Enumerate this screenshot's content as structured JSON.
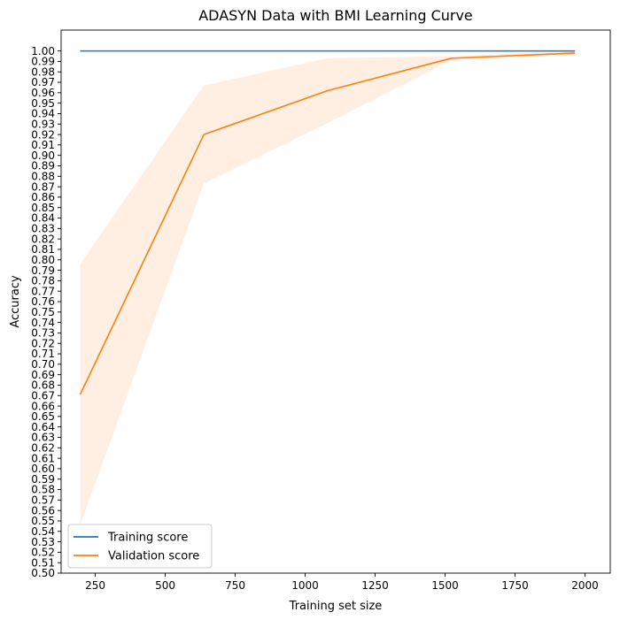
{
  "chart_data": {
    "type": "line",
    "title": "ADASYN Data with BMI Learning Curve",
    "xlabel": "Training set size",
    "ylabel": "Accuracy",
    "xlim": [
      128,
      2090
    ],
    "ylim": [
      0.5,
      1.02
    ],
    "xticks": [
      250,
      500,
      750,
      1000,
      1250,
      1500,
      1750,
      2000
    ],
    "xtick_labels": [
      "250",
      "500",
      "750",
      "1000",
      "1250",
      "1500",
      "1750",
      "2000"
    ],
    "ytick_labels": [
      "0.50",
      "0.51",
      "0.52",
      "0.53",
      "0.54",
      "0.55",
      "0.56",
      "0.57",
      "0.58",
      "0.59",
      "0.60",
      "0.61",
      "0.62",
      "0.63",
      "0.64",
      "0.65",
      "0.66",
      "0.67",
      "0.68",
      "0.69",
      "0.70",
      "0.71",
      "0.72",
      "0.73",
      "0.74",
      "0.75",
      "0.76",
      "0.77",
      "0.78",
      "0.79",
      "0.80",
      "0.81",
      "0.82",
      "0.83",
      "0.84",
      "0.85",
      "0.86",
      "0.87",
      "0.88",
      "0.89",
      "0.90",
      "0.91",
      "0.92",
      "0.93",
      "0.94",
      "0.95",
      "0.96",
      "0.97",
      "0.98",
      "0.99",
      "1.00"
    ],
    "grid": false,
    "legend_position": "lower-left",
    "x": [
      196,
      638,
      1080,
      1522,
      1964
    ],
    "series": [
      {
        "name": "Training score",
        "color": "#1f77b4",
        "values": [
          1.0,
          1.0,
          1.0,
          1.0,
          1.0
        ]
      },
      {
        "name": "Validation score",
        "color": "#ff7f0e",
        "values": [
          0.671,
          0.92,
          0.962,
          0.993,
          0.998
        ],
        "band_lower": [
          0.546,
          0.873,
          0.931,
          0.991,
          0.996
        ],
        "band_upper": [
          0.796,
          0.967,
          0.993,
          0.995,
          1.0
        ],
        "band_color": "#ff7f0e",
        "band_opacity": 0.12
      }
    ]
  }
}
